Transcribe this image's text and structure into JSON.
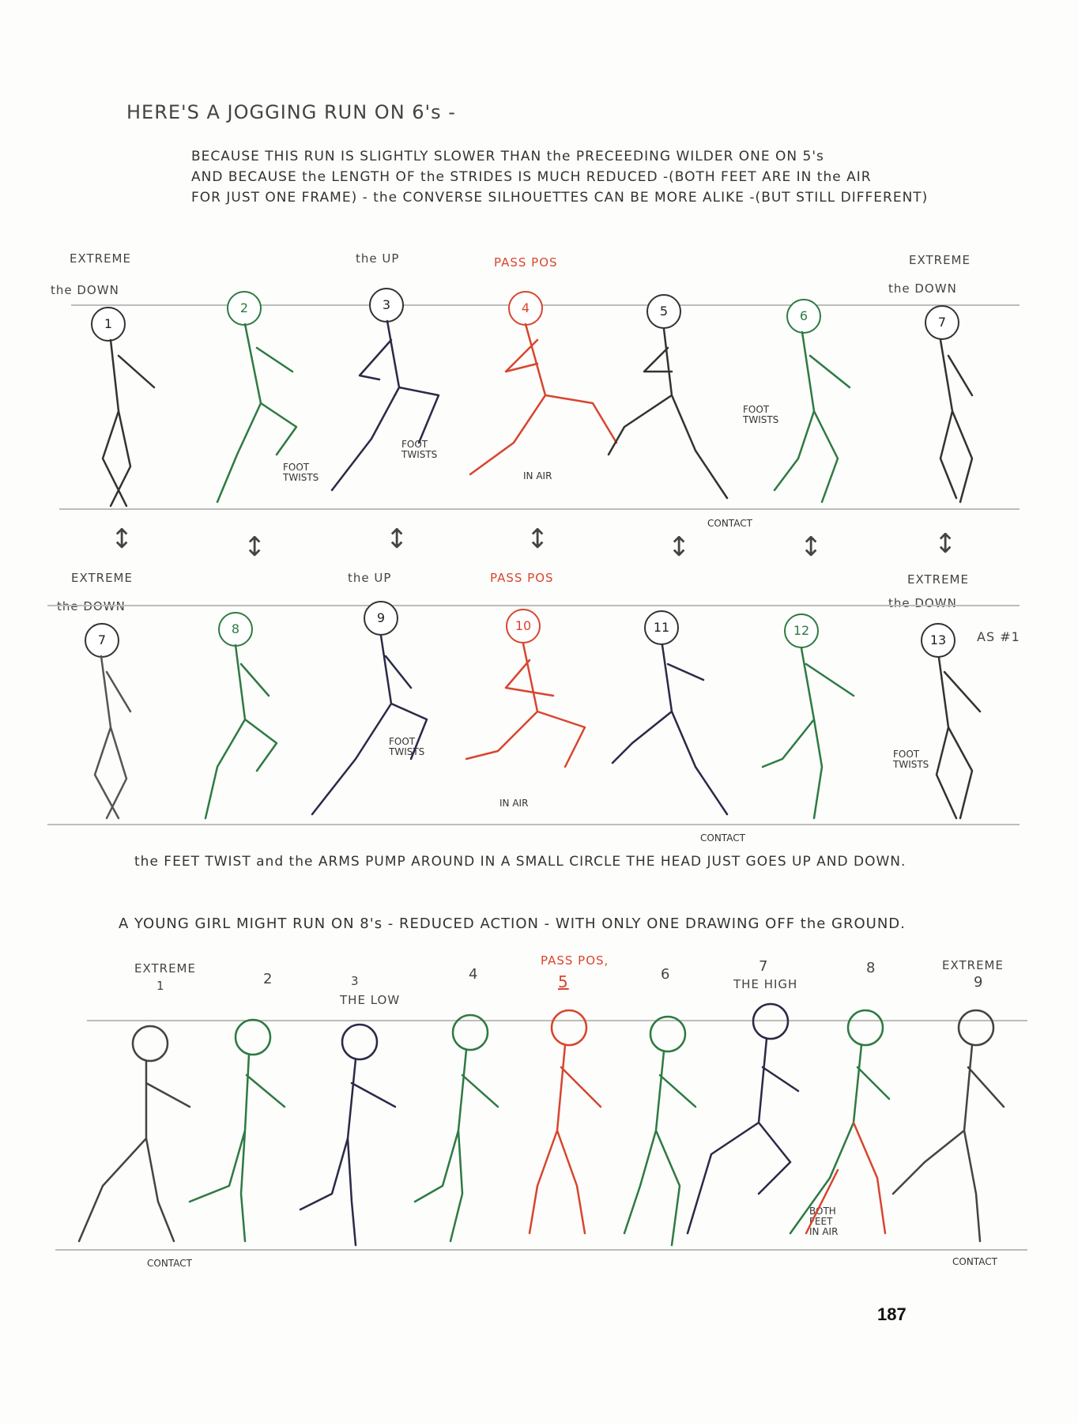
{
  "title": "HERE'S A JOGGING RUN ON 6's -",
  "intro": [
    "BECAUSE THIS RUN IS SLIGHTLY SLOWER THAN the PRECEEDING WILDER ONE ON 5's",
    "AND BECAUSE the LENGTH OF the STRIDES IS MUCH REDUCED -(BOTH FEET ARE IN the AIR",
    "FOR JUST ONE FRAME) - the CONVERSE SILHOUETTES CAN BE MORE ALIKE -(BUT STILL DIFFERENT)"
  ],
  "row1": {
    "label_extreme_left": "EXTREME",
    "label_down_left": "the DOWN",
    "label_up": "the UP",
    "label_pass": "PASS POS",
    "label_extreme_right": "EXTREME",
    "label_down_right": "the DOWN",
    "frames": [
      "1",
      "2",
      "3",
      "4",
      "5",
      "6",
      "7"
    ],
    "note_foot_twists_a": "FOOT TWISTS",
    "note_foot_twists_b": "FOOT TWISTS",
    "note_in_air": "IN AIR",
    "note_foot_twists_c": "FOOT TWISTS",
    "note_contact": "CONTACT"
  },
  "row2": {
    "label_extreme_left": "EXTREME",
    "label_down_left": "the DOWN",
    "label_up": "the UP",
    "label_pass": "PASS POS",
    "label_extreme_right": "EXTREME",
    "label_down_right": "the DOWN",
    "frames": [
      "7",
      "8",
      "9",
      "10",
      "11",
      "12",
      "13"
    ],
    "as_note": "AS #1",
    "note_foot_twists_a": "FOOT TWISTS",
    "note_in_air": "IN AIR",
    "note_contact": "CONTACT",
    "note_foot_twists_b": "FOOT TWISTS"
  },
  "caption_row2": "the FEET TWIST and the ARMS PUMP AROUND IN A SMALL CIRCLE THE HEAD JUST GOES UP AND DOWN.",
  "girl_title": "A YOUNG GIRL MIGHT RUN ON 8's - REDUCED ACTION - WITH ONLY ONE DRAWING OFF the GROUND.",
  "girl_row": {
    "label_extreme_left": "EXTREME",
    "frames": [
      "1",
      "2",
      "3",
      "4",
      "5",
      "6",
      "7",
      "8",
      "9"
    ],
    "label_low": "THE LOW",
    "label_pass": "PASS POS,",
    "label_high": "THE HIGH",
    "label_extreme_right": "EXTREME",
    "note_contact_left": "CONTACT",
    "note_both_feet": "BOTH FEET IN AIR",
    "note_contact_right": "CONTACT"
  },
  "page_number": "187",
  "colors": {
    "ink": "#333333",
    "red": "#d8452f",
    "green": "#2e7a43",
    "navy": "#2a2a48"
  }
}
